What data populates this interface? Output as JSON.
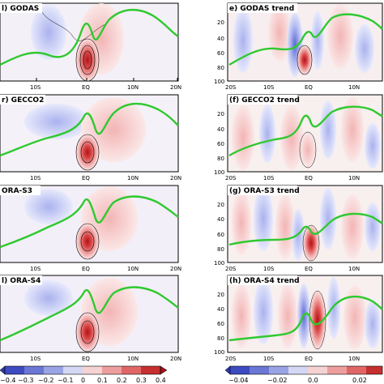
{
  "panels": [
    {
      "id": "a",
      "label": "l) GODAS",
      "xticks": [
        "10S",
        "EQ",
        "10N",
        "20N"
      ]
    },
    {
      "id": "e",
      "label": "e) GODAS trend",
      "xticks": [
        "20S",
        "10S",
        "EQ",
        "10N"
      ],
      "yticks": [
        "20",
        "40",
        "60",
        "80",
        "100"
      ]
    },
    {
      "id": "b",
      "label": "r) GECCO2",
      "xticks": [
        "10S",
        "EQ",
        "10N",
        "20N"
      ]
    },
    {
      "id": "f",
      "label": "(f) GECCO2 trend",
      "xticks": [
        "20S",
        "10S",
        "EQ",
        "10N"
      ],
      "yticks": [
        "20",
        "40",
        "60",
        "80",
        "100"
      ]
    },
    {
      "id": "c",
      "label": "ORA-S3",
      "xticks": [
        "10S",
        "EQ",
        "10N",
        "20N"
      ]
    },
    {
      "id": "g",
      "label": "(g) ORA-S3 trend",
      "xticks": [
        "20S",
        "10S",
        "EQ",
        "10N"
      ],
      "yticks": [
        "20",
        "40",
        "60",
        "80",
        "100"
      ]
    },
    {
      "id": "d",
      "label": "l) ORA-S4",
      "xticks": [
        "10S",
        "EQ",
        "10N",
        "20N"
      ]
    },
    {
      "id": "h",
      "label": "(h) ORA-S4 trend",
      "xticks": [
        "20S",
        "10S",
        "EQ",
        "10N"
      ],
      "yticks": [
        "20",
        "40",
        "60",
        "80",
        "100"
      ]
    }
  ],
  "colorbar_left": {
    "ticks": [
      "−0.4",
      "−0.3",
      "−0.2",
      "−0.1",
      "0",
      "0.1",
      "0.2",
      "0.3",
      "0.4"
    ]
  },
  "colorbar_right": {
    "ticks": [
      "−0.04",
      "−0.02",
      "0.0",
      "0.02"
    ]
  },
  "colors": {
    "positive": "#d94b4b",
    "negative": "#4a5bd0",
    "line": "#2fc92f"
  }
}
